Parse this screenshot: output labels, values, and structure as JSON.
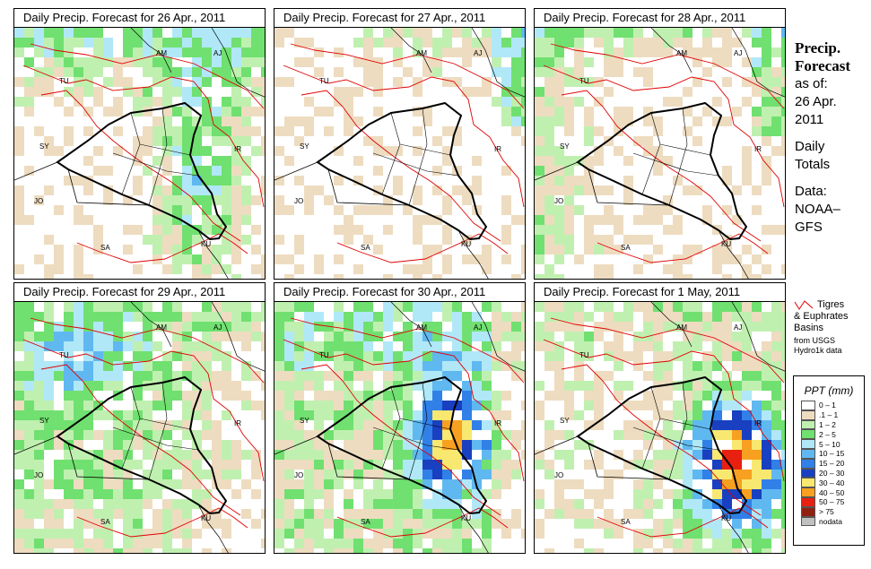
{
  "panels": [
    {
      "title": "Daily Precip. Forecast for  26 Apr., 2011",
      "seed": 11,
      "pattern": "north"
    },
    {
      "title": "Daily Precip. Forecast for  27 Apr., 2011",
      "seed": 23,
      "pattern": "light"
    },
    {
      "title": "Daily Precip. Forecast for  28 Apr., 2011",
      "seed": 37,
      "pattern": "west"
    },
    {
      "title": "Daily Precip. Forecast for  29 Apr., 2011",
      "seed": 41,
      "pattern": "wide"
    },
    {
      "title": "Daily Precip. Forecast for  30 Apr., 2011",
      "seed": 53,
      "pattern": "central"
    },
    {
      "title": "Daily Precip. Forecast for  1 May, 2011",
      "seed": 67,
      "pattern": "southeast"
    }
  ],
  "country_labels": [
    "AM",
    "AJ",
    "TU",
    "SY",
    "IR",
    "JO",
    "SA",
    "KU"
  ],
  "sidebar": {
    "title_line1": "Precip.",
    "title_line2": "Forecast",
    "asof_line1": "as of:",
    "asof_line2": "26 Apr.",
    "asof_line3": "2011",
    "totals_line1": "Daily",
    "totals_line2": "Totals",
    "data_line1": "Data:",
    "data_line2": "NOAA–",
    "data_line3": "GFS"
  },
  "basins": {
    "line1": "Tigres",
    "line2": "& Euphrates",
    "line3": "Basins",
    "src1": "from USGS",
    "src2": "Hydro1k data"
  },
  "legend": {
    "title": "PPT (mm)",
    "items": [
      {
        "label": "0 – 1",
        "color": "#ffffff"
      },
      {
        "label": ".1 – 1",
        "color": "#eedcc0"
      },
      {
        "label": "1 – 2",
        "color": "#c0f0b0"
      },
      {
        "label": "2 – 5",
        "color": "#70e070"
      },
      {
        "label": "5 – 10",
        "color": "#b0e8f8"
      },
      {
        "label": "10 – 15",
        "color": "#60b8f0"
      },
      {
        "label": "15 – 20",
        "color": "#3080e8"
      },
      {
        "label": "20 – 30",
        "color": "#1840c0"
      },
      {
        "label": "30 – 40",
        "color": "#f8e870"
      },
      {
        "label": "40 – 50",
        "color": "#f8a020"
      },
      {
        "label": "50 – 75",
        "color": "#e82010"
      },
      {
        "label": "> 75",
        "color": "#902010"
      },
      {
        "label": "nodata",
        "color": "#c0c0c0"
      }
    ]
  }
}
